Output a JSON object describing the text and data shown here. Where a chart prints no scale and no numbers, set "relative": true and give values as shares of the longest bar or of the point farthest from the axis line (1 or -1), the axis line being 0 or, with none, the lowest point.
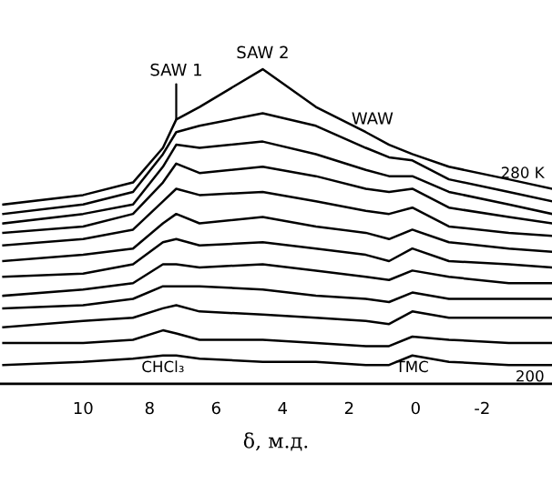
{
  "chart_data": {
    "type": "line",
    "relative": true,
    "xlabel": "δ, м.д.",
    "x": [
      12.4,
      10,
      8.5,
      7.6,
      7.2,
      6.5,
      4.6,
      3,
      1.5,
      0.8,
      0.1,
      -1,
      -2.8,
      -4.1
    ],
    "xlim": [
      12.5,
      -4.1
    ],
    "xticks": [
      10,
      8,
      6,
      4,
      2,
      0,
      {
        "value": -2,
        "label": "-2"
      }
    ],
    "grid": false,
    "legend": false,
    "marker": "none",
    "line_style": "solid",
    "tick_labels": "x",
    "series": [
      {
        "name": "280 K",
        "color": "#000000",
        "values": [
          0.57,
          0.6,
          0.64,
          0.75,
          0.84,
          0.88,
          1.0,
          0.88,
          0.8,
          0.76,
          0.73,
          0.69,
          0.65,
          0.62
        ]
      },
      {
        "color": "#000000",
        "values": [
          0.54,
          0.57,
          0.61,
          0.73,
          0.8,
          0.82,
          0.86,
          0.82,
          0.75,
          0.72,
          0.71,
          0.65,
          0.61,
          0.58
        ]
      },
      {
        "color": "#000000",
        "values": [
          0.51,
          0.54,
          0.57,
          0.69,
          0.76,
          0.75,
          0.77,
          0.73,
          0.68,
          0.66,
          0.66,
          0.61,
          0.57,
          0.54
        ]
      },
      {
        "color": "#000000",
        "values": [
          0.48,
          0.5,
          0.54,
          0.64,
          0.7,
          0.67,
          0.69,
          0.66,
          0.62,
          0.61,
          0.62,
          0.56,
          0.53,
          0.51
        ]
      },
      {
        "color": "#000000",
        "values": [
          0.44,
          0.46,
          0.49,
          0.58,
          0.62,
          0.6,
          0.61,
          0.58,
          0.55,
          0.54,
          0.56,
          0.5,
          0.48,
          0.47
        ]
      },
      {
        "color": "#000000",
        "values": [
          0.39,
          0.41,
          0.43,
          0.51,
          0.54,
          0.51,
          0.53,
          0.5,
          0.48,
          0.46,
          0.49,
          0.45,
          0.43,
          0.42
        ]
      },
      {
        "color": "#000000",
        "values": [
          0.34,
          0.35,
          0.38,
          0.45,
          0.46,
          0.44,
          0.45,
          0.43,
          0.41,
          0.39,
          0.43,
          0.39,
          0.38,
          0.37
        ]
      },
      {
        "color": "#000000",
        "values": [
          0.28,
          0.3,
          0.32,
          0.38,
          0.38,
          0.37,
          0.38,
          0.36,
          0.34,
          0.33,
          0.36,
          0.34,
          0.32,
          0.32
        ]
      },
      {
        "color": "#000000",
        "values": [
          0.24,
          0.25,
          0.27,
          0.31,
          0.31,
          0.31,
          0.3,
          0.28,
          0.27,
          0.26,
          0.29,
          0.27,
          0.27,
          0.27
        ]
      },
      {
        "color": "#000000",
        "values": [
          0.18,
          0.2,
          0.21,
          0.24,
          0.25,
          0.23,
          0.22,
          0.21,
          0.2,
          0.19,
          0.23,
          0.21,
          0.21,
          0.21
        ]
      },
      {
        "color": "#000000",
        "values": [
          0.13,
          0.13,
          0.14,
          0.17,
          0.16,
          0.14,
          0.14,
          0.13,
          0.12,
          0.12,
          0.15,
          0.14,
          0.13,
          0.13
        ]
      },
      {
        "name": "200",
        "color": "#000000",
        "values": [
          0.06,
          0.07,
          0.08,
          0.09,
          0.09,
          0.08,
          0.07,
          0.07,
          0.06,
          0.06,
          0.09,
          0.07,
          0.06,
          0.06
        ]
      }
    ],
    "annotations": [
      {
        "text": "SAW 1",
        "x": 7.2,
        "y": 0.84
      },
      {
        "text": "SAW 2",
        "x": 4.6,
        "y": 1.0
      },
      {
        "text": "WAW",
        "x": 1.3,
        "y": 0.79
      },
      {
        "text": "CHCl₃",
        "x": 7.6,
        "y": 0.09
      },
      {
        "text": "TMC",
        "x": 0.1,
        "y": 0.09
      }
    ]
  }
}
